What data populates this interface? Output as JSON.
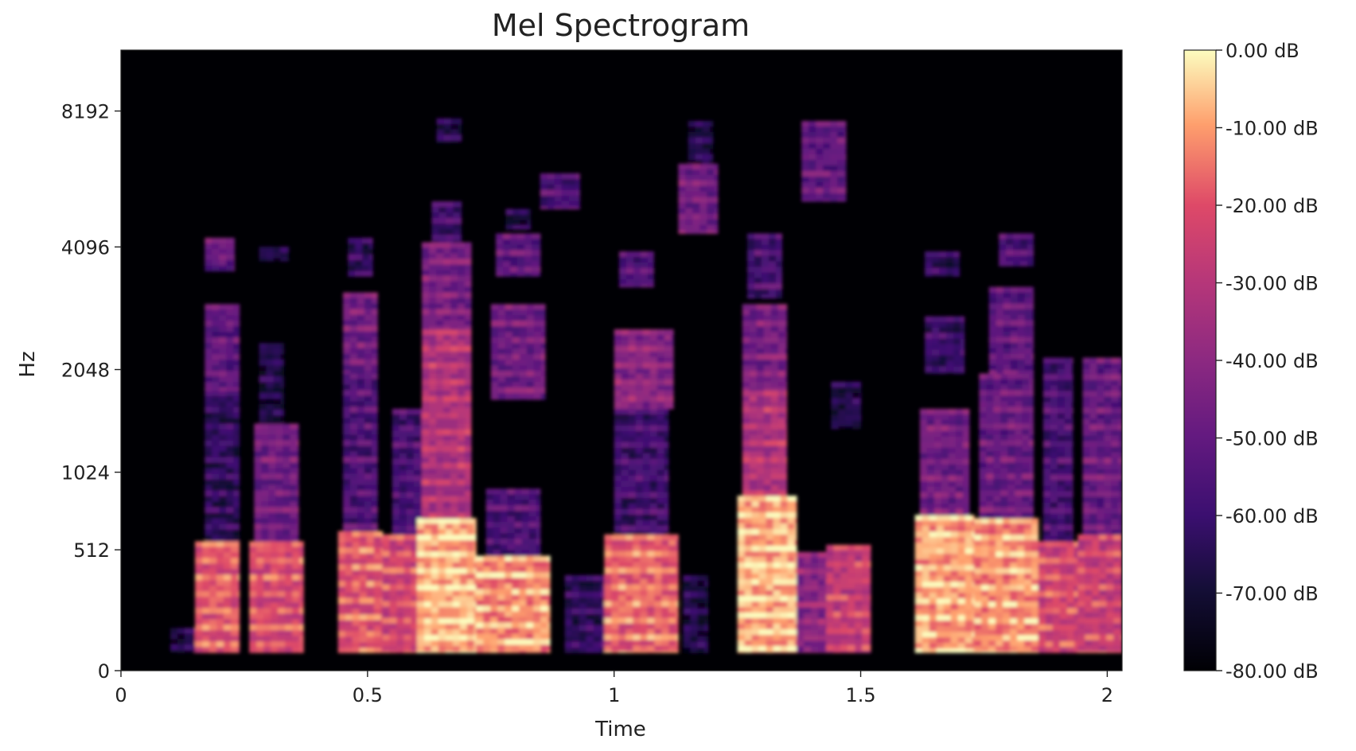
{
  "chart_data": {
    "type": "heatmap",
    "title": "Mel Spectrogram",
    "xlabel": "Time",
    "ylabel": "Hz",
    "xlim": [
      0,
      2.03
    ],
    "x_ticks": [
      0,
      0.5,
      1,
      1.5,
      2
    ],
    "x_tick_labels": [
      "0",
      "0.5",
      "1",
      "1.5",
      "2"
    ],
    "y_scale": "mel",
    "ylim": [
      0,
      11025
    ],
    "y_ticks": [
      0,
      512,
      1024,
      2048,
      4096,
      8192
    ],
    "y_tick_labels": [
      "0",
      "512",
      "1024",
      "2048",
      "4096",
      "8192"
    ],
    "colormap": "magma",
    "colorbar": {
      "range": [
        -80,
        0
      ],
      "ticks": [
        0,
        -10,
        -20,
        -30,
        -40,
        -50,
        -60,
        -70,
        -80
      ],
      "tick_labels": [
        "0.00 dB",
        "-10.00 dB",
        "-20.00 dB",
        "-30.00 dB",
        "-40.00 dB",
        "-50.00 dB",
        "-60.00 dB",
        "-70.00 dB",
        "-80.00 dB"
      ]
    },
    "background_db": -80,
    "segments": [
      {
        "t0": 0.1,
        "t1": 0.16,
        "f0": 60,
        "f1": 150,
        "db": -66
      },
      {
        "t0": 0.15,
        "t1": 0.24,
        "f0": 60,
        "f1": 560,
        "db": -18
      },
      {
        "t0": 0.17,
        "t1": 0.24,
        "f0": 560,
        "f1": 1800,
        "db": -62
      },
      {
        "t0": 0.17,
        "t1": 0.24,
        "f0": 1800,
        "f1": 3000,
        "db": -50
      },
      {
        "t0": 0.17,
        "t1": 0.23,
        "f0": 3600,
        "f1": 4300,
        "db": -48
      },
      {
        "t0": 0.26,
        "t1": 0.37,
        "f0": 60,
        "f1": 560,
        "db": -20
      },
      {
        "t0": 0.27,
        "t1": 0.36,
        "f0": 560,
        "f1": 1450,
        "db": -46
      },
      {
        "t0": 0.28,
        "t1": 0.33,
        "f0": 1450,
        "f1": 2400,
        "db": -66
      },
      {
        "t0": 0.28,
        "t1": 0.34,
        "f0": 3800,
        "f1": 4100,
        "db": -66
      },
      {
        "t0": 0.44,
        "t1": 0.53,
        "f0": 60,
        "f1": 620,
        "db": -18
      },
      {
        "t0": 0.45,
        "t1": 0.52,
        "f0": 620,
        "f1": 2000,
        "db": -54
      },
      {
        "t0": 0.45,
        "t1": 0.52,
        "f0": 2000,
        "f1": 3200,
        "db": -46
      },
      {
        "t0": 0.46,
        "t1": 0.51,
        "f0": 3500,
        "f1": 4300,
        "db": -62
      },
      {
        "t0": 0.53,
        "t1": 0.61,
        "f0": 60,
        "f1": 600,
        "db": -22
      },
      {
        "t0": 0.55,
        "t1": 0.62,
        "f0": 600,
        "f1": 1600,
        "db": -56
      },
      {
        "t0": 0.6,
        "t1": 0.72,
        "f0": 60,
        "f1": 700,
        "db": -6
      },
      {
        "t0": 0.61,
        "t1": 0.71,
        "f0": 700,
        "f1": 2600,
        "db": -30
      },
      {
        "t0": 0.61,
        "t1": 0.71,
        "f0": 2600,
        "f1": 4200,
        "db": -44
      },
      {
        "t0": 0.63,
        "t1": 0.69,
        "f0": 4200,
        "f1": 5200,
        "db": -58
      },
      {
        "t0": 0.64,
        "t1": 0.69,
        "f0": 7000,
        "f1": 7900,
        "db": -66
      },
      {
        "t0": 0.72,
        "t1": 0.87,
        "f0": 60,
        "f1": 480,
        "db": -10
      },
      {
        "t0": 0.74,
        "t1": 0.85,
        "f0": 480,
        "f1": 900,
        "db": -54
      },
      {
        "t0": 0.75,
        "t1": 0.86,
        "f0": 1700,
        "f1": 3000,
        "db": -46
      },
      {
        "t0": 0.76,
        "t1": 0.85,
        "f0": 3500,
        "f1": 4400,
        "db": -50
      },
      {
        "t0": 0.78,
        "t1": 0.83,
        "f0": 4500,
        "f1": 5000,
        "db": -66
      },
      {
        "t0": 0.85,
        "t1": 0.93,
        "f0": 5000,
        "f1": 6000,
        "db": -54
      },
      {
        "t0": 0.9,
        "t1": 0.98,
        "f0": 60,
        "f1": 380,
        "db": -62
      },
      {
        "t0": 0.98,
        "t1": 1.13,
        "f0": 60,
        "f1": 600,
        "db": -16
      },
      {
        "t0": 1.0,
        "t1": 1.11,
        "f0": 600,
        "f1": 1600,
        "db": -58
      },
      {
        "t0": 1.0,
        "t1": 1.12,
        "f0": 1600,
        "f1": 2600,
        "db": -40
      },
      {
        "t0": 1.01,
        "t1": 1.08,
        "f0": 3300,
        "f1": 4000,
        "db": -54
      },
      {
        "t0": 1.13,
        "t1": 1.21,
        "f0": 4400,
        "f1": 6300,
        "db": -46
      },
      {
        "t0": 1.15,
        "t1": 1.2,
        "f0": 6300,
        "f1": 7800,
        "db": -66
      },
      {
        "t0": 1.14,
        "t1": 1.19,
        "f0": 60,
        "f1": 380,
        "db": -66
      },
      {
        "t0": 1.25,
        "t1": 1.37,
        "f0": 60,
        "f1": 850,
        "db": -6
      },
      {
        "t0": 1.26,
        "t1": 1.35,
        "f0": 850,
        "f1": 1800,
        "db": -30
      },
      {
        "t0": 1.26,
        "t1": 1.35,
        "f0": 1800,
        "f1": 3000,
        "db": -44
      },
      {
        "t0": 1.27,
        "t1": 1.34,
        "f0": 3100,
        "f1": 4400,
        "db": -56
      },
      {
        "t0": 1.37,
        "t1": 1.43,
        "f0": 60,
        "f1": 500,
        "db": -40
      },
      {
        "t0": 1.38,
        "t1": 1.47,
        "f0": 5200,
        "f1": 7800,
        "db": -50
      },
      {
        "t0": 1.43,
        "t1": 1.52,
        "f0": 60,
        "f1": 540,
        "db": -26
      },
      {
        "t0": 1.44,
        "t1": 1.5,
        "f0": 1400,
        "f1": 1900,
        "db": -66
      },
      {
        "t0": 1.61,
        "t1": 1.73,
        "f0": 60,
        "f1": 720,
        "db": -8
      },
      {
        "t0": 1.62,
        "t1": 1.72,
        "f0": 720,
        "f1": 1600,
        "db": -46
      },
      {
        "t0": 1.63,
        "t1": 1.71,
        "f0": 2000,
        "f1": 2800,
        "db": -60
      },
      {
        "t0": 1.63,
        "t1": 1.7,
        "f0": 3500,
        "f1": 4000,
        "db": -62
      },
      {
        "t0": 1.73,
        "t1": 1.86,
        "f0": 60,
        "f1": 700,
        "db": -10
      },
      {
        "t0": 1.74,
        "t1": 1.85,
        "f0": 700,
        "f1": 2000,
        "db": -48
      },
      {
        "t0": 1.76,
        "t1": 1.85,
        "f0": 2000,
        "f1": 3300,
        "db": -50
      },
      {
        "t0": 1.78,
        "t1": 1.85,
        "f0": 3700,
        "f1": 4400,
        "db": -54
      },
      {
        "t0": 1.86,
        "t1": 1.94,
        "f0": 60,
        "f1": 560,
        "db": -22
      },
      {
        "t0": 1.87,
        "t1": 1.93,
        "f0": 560,
        "f1": 2200,
        "db": -56
      },
      {
        "t0": 1.94,
        "t1": 2.03,
        "f0": 60,
        "f1": 600,
        "db": -24
      },
      {
        "t0": 1.95,
        "t1": 2.03,
        "f0": 600,
        "f1": 2200,
        "db": -48
      }
    ]
  }
}
